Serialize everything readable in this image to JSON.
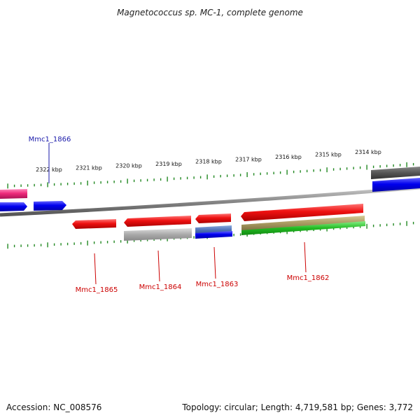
{
  "title": "Magnetococcus sp. MC-1, complete genome",
  "footer": {
    "accession": "Accession: NC_008576",
    "summary": "Topology: circular; Length: 4,719,581 bp; Genes: 3,772"
  },
  "colors": {
    "forward_gene": "#0000ee",
    "reverse_gene": "#ee0000",
    "grey_feature": "#aaaaaa",
    "dark_feature": "#555555",
    "pink_feature": "#ee2a7b",
    "steel_feature": "#5577bb",
    "olive_feature": "#a89a60",
    "green_feature": "#22bb22",
    "tick_color": "#228822",
    "backbone": "#888888",
    "label_forward": "#1a1aaa",
    "label_reverse": "#cc0000"
  },
  "ticks": [
    {
      "label": "2322 kbp"
    },
    {
      "label": "2321 kbp"
    },
    {
      "label": "2320 kbp"
    },
    {
      "label": "2319 kbp"
    },
    {
      "label": "2318 kbp"
    },
    {
      "label": "2317 kbp"
    },
    {
      "label": "2316 kbp"
    },
    {
      "label": "2315 kbp"
    },
    {
      "label": "2314 kbp"
    }
  ],
  "gene_labels": [
    {
      "name": "Mmc1_1866",
      "strand": "forward"
    },
    {
      "name": "Mmc1_1865",
      "strand": "reverse"
    },
    {
      "name": "Mmc1_1864",
      "strand": "reverse"
    },
    {
      "name": "Mmc1_1863",
      "strand": "reverse"
    },
    {
      "name": "Mmc1_1862",
      "strand": "reverse"
    }
  ]
}
